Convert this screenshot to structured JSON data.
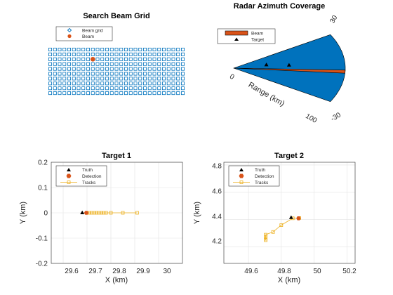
{
  "colors": {
    "grid_marker": "#0072bd",
    "beam": "#d95319",
    "coverage_fill": "#0072bd",
    "tracks": "#edb120",
    "truth": "#000000"
  },
  "chart_data": [
    {
      "type": "scatter",
      "title": "Search Beam Grid",
      "legend": [
        "Beam grid",
        "Beam"
      ],
      "legend_position": "top-left",
      "grid_rows": 10,
      "grid_cols": 29,
      "active_beam": {
        "row": 2,
        "col": 9
      }
    },
    {
      "type": "polar-sector",
      "title": "Radar Azimuth Coverage",
      "radial_label": "Range (km)",
      "range_ticks": [
        "0",
        "100"
      ],
      "azimuth_ticks": [
        "30",
        "-30"
      ],
      "azimuth_range": [
        -30,
        30
      ],
      "max_range": 100,
      "beam_azimuth": -3,
      "legend": [
        "Beam",
        "Target"
      ],
      "legend_position": "top-left",
      "targets": [
        {
          "azimuth": 9.5,
          "range": 29.7
        },
        {
          "azimuth": 5.1,
          "range": 49.8
        }
      ]
    },
    {
      "type": "scatter",
      "title": "Target 1",
      "xlabel": "X (km)",
      "ylabel": "Y (km)",
      "xlim": [
        29.55,
        30.1
      ],
      "ylim": [
        -0.2,
        0.2
      ],
      "xticks": [
        "29.6",
        "29.7",
        "29.8",
        "29.9",
        "30"
      ],
      "yticks": [
        "0.2",
        "0.1",
        "0",
        "-0.1",
        "-0.2"
      ],
      "grid": true,
      "legend": [
        "Truth",
        "Detection",
        "Tracks"
      ],
      "legend_position": "top-left",
      "truth": [
        [
          29.68,
          0
        ]
      ],
      "detection": [
        [
          29.697,
          0
        ]
      ],
      "tracks": [
        [
          29.7,
          0
        ],
        [
          29.71,
          0
        ],
        [
          29.72,
          0
        ],
        [
          29.73,
          0
        ],
        [
          29.74,
          0
        ],
        [
          29.75,
          0
        ],
        [
          29.76,
          0
        ],
        [
          29.77,
          0
        ],
        [
          29.78,
          0
        ],
        [
          29.8,
          0
        ],
        [
          29.85,
          0
        ],
        [
          29.91,
          0
        ]
      ]
    },
    {
      "type": "scatter",
      "title": "Target 2",
      "xlabel": "X (km)",
      "ylabel": "Y (km)",
      "xlim": [
        49.45,
        50.25
      ],
      "ylim": [
        4.08,
        4.82
      ],
      "xticks": [
        "49.6",
        "49.8",
        "50",
        "50.2"
      ],
      "yticks": [
        "4.8",
        "4.6",
        "4.4",
        "4.2"
      ],
      "grid": true,
      "legend": [
        "Truth",
        "Detection",
        "Tracks"
      ],
      "legend_position": "top-left",
      "truth": [
        [
          49.86,
          4.415
        ]
      ],
      "detection": [
        [
          49.905,
          4.41
        ]
      ],
      "tracks": [
        [
          49.705,
          4.25
        ],
        [
          49.705,
          4.26
        ],
        [
          49.705,
          4.275
        ],
        [
          49.705,
          4.29
        ],
        [
          49.75,
          4.31
        ],
        [
          49.8,
          4.36
        ],
        [
          49.87,
          4.41
        ],
        [
          49.91,
          4.412
        ]
      ]
    }
  ]
}
